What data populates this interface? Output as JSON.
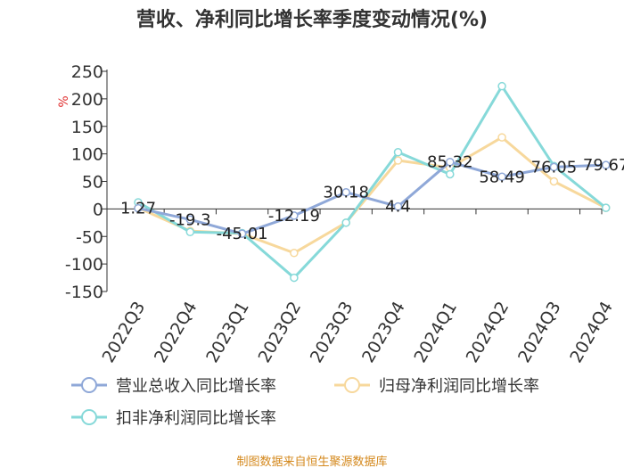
{
  "chart_data": {
    "type": "line",
    "title": "营收、净利同比增长率季度变动情况(%)",
    "y_unit": "%",
    "categories": [
      "2022Q3",
      "2022Q4",
      "2023Q1",
      "2023Q2",
      "2023Q3",
      "2023Q4",
      "2024Q1",
      "2024Q2",
      "2024Q3",
      "2024Q4"
    ],
    "ylim": [
      -150,
      250
    ],
    "yticks": [
      250,
      200,
      150,
      100,
      50,
      0,
      -50,
      -100,
      -150
    ],
    "grid": false,
    "legend_position": "bottom",
    "series": [
      {
        "name": "营业总收入同比增长率",
        "color": "#8fa8d8",
        "values": [
          1.27,
          -19.3,
          -45.01,
          -12.19,
          30.18,
          4.4,
          85.32,
          58.49,
          76.05,
          79.67
        ],
        "labels": [
          "1.27",
          "-19.3",
          "-45.01",
          "-12.19",
          "30.18",
          "4.4",
          "85.32",
          "58.49",
          "76.05",
          "79.67"
        ]
      },
      {
        "name": "归母净利润同比增长率",
        "color": "#f7d89c",
        "values": [
          2,
          -40,
          -45,
          -80,
          -25,
          88,
          75,
          130,
          50,
          2
        ]
      },
      {
        "name": "扣非净利润同比增长率",
        "color": "#86d9d9",
        "values": [
          12,
          -42,
          -44,
          -125,
          -25,
          103,
          63,
          223,
          78,
          2
        ]
      }
    ],
    "source": "制图数据来自恒生聚源数据库"
  }
}
